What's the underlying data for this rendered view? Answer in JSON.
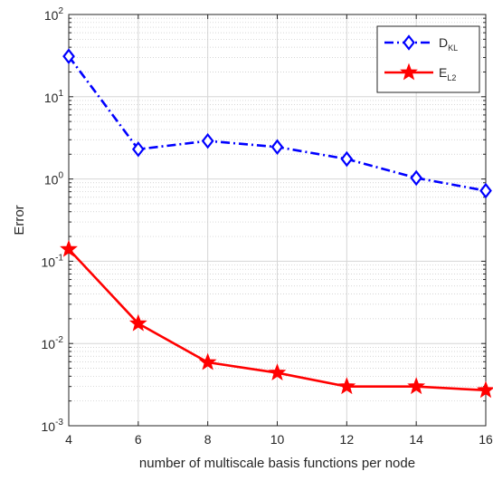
{
  "chart_data": {
    "type": "line",
    "xlabel": "number of multiscale basis functions per node",
    "ylabel": "Error",
    "x": [
      4,
      6,
      8,
      10,
      12,
      14,
      16
    ],
    "xlim": [
      4,
      16
    ],
    "ylim": [
      0.001,
      100
    ],
    "yscale": "log",
    "x_ticks": [
      "4",
      "6",
      "8",
      "10",
      "12",
      "14",
      "16"
    ],
    "y_ticks": [
      {
        "base": "10",
        "exp": "-3",
        "value": 0.001
      },
      {
        "base": "10",
        "exp": "-2",
        "value": 0.01
      },
      {
        "base": "10",
        "exp": "-1",
        "value": 0.1
      },
      {
        "base": "10",
        "exp": "0",
        "value": 1
      },
      {
        "base": "10",
        "exp": "1",
        "value": 10
      },
      {
        "base": "10",
        "exp": "2",
        "value": 100
      }
    ],
    "grid": true,
    "legend_position": "top-right",
    "series": [
      {
        "name_main": "D",
        "name_sub": "KL",
        "color": "#0000ff",
        "line_style": "dash-dot",
        "marker": "diamond",
        "values": [
          31,
          2.3,
          2.9,
          2.45,
          1.75,
          1.03,
          0.72
        ]
      },
      {
        "name_main": "E",
        "name_sub": "L2",
        "color": "#ff0000",
        "line_style": "solid",
        "marker": "star",
        "values": [
          0.14,
          0.0175,
          0.0059,
          0.0044,
          0.003,
          0.003,
          0.0027
        ]
      }
    ]
  }
}
